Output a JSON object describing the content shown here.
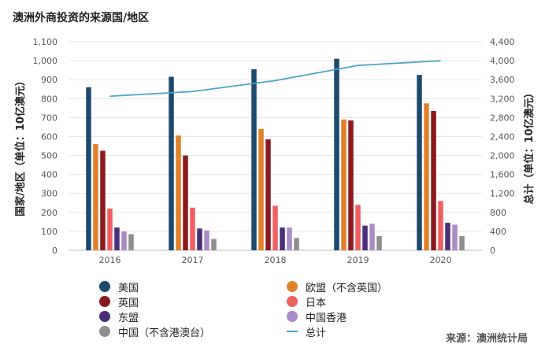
{
  "chart_data": {
    "type": "bar",
    "title": "澳洲外商投资的来源国/地区",
    "categories": [
      "2016",
      "2017",
      "2018",
      "2019",
      "2020"
    ],
    "ylabel": "国家/地区（单位：10亿澳元）",
    "y2label": "总计（单位：10亿澳元）",
    "ylim": [
      0,
      1100
    ],
    "y2lim": [
      0,
      4400
    ],
    "yticks": [
      "0",
      "100",
      "200",
      "300",
      "400",
      "500",
      "600",
      "700",
      "800",
      "900",
      "1,000",
      "1,100"
    ],
    "y2ticks": [
      "0",
      "400",
      "800",
      "1,200",
      "1,600",
      "2,000",
      "2,400",
      "2,800",
      "3,200",
      "3,600",
      "4,000",
      "4,400"
    ],
    "grid": true,
    "legend_placement": "bottom",
    "series": [
      {
        "name": "美国",
        "color": "#1a4a6e",
        "values": [
          860,
          915,
          955,
          1010,
          925
        ]
      },
      {
        "name": "欧盟（不含英国）",
        "color": "#e0822c",
        "values": [
          560,
          605,
          640,
          690,
          775
        ]
      },
      {
        "name": "英国",
        "color": "#8b1a1f",
        "values": [
          525,
          500,
          585,
          685,
          735
        ]
      },
      {
        "name": "日本",
        "color": "#f06060",
        "values": [
          220,
          225,
          235,
          240,
          260
        ]
      },
      {
        "name": "东盟",
        "color": "#4a2e7a",
        "values": [
          120,
          115,
          120,
          130,
          145
        ]
      },
      {
        "name": "中国香港",
        "color": "#a88cc4",
        "values": [
          100,
          105,
          120,
          140,
          135
        ]
      },
      {
        "name": "中国（不含港澳台）",
        "color": "#8e8e8e",
        "values": [
          85,
          60,
          65,
          75,
          75
        ]
      }
    ],
    "line": {
      "name": "总计",
      "color": "#4aa3c8",
      "values": [
        3250,
        3350,
        3580,
        3900,
        4000
      ]
    },
    "source": "来源：澳洲统计局"
  },
  "legend": [
    {
      "label": "美国",
      "color": "#1a4a6e"
    },
    {
      "label": "欧盟（不含英国）",
      "color": "#e0822c"
    },
    {
      "label": "英国",
      "color": "#8b1a1f"
    },
    {
      "label": "日本",
      "color": "#f06060"
    },
    {
      "label": "东盟",
      "color": "#4a2e7a"
    },
    {
      "label": "中国香港",
      "color": "#a88cc4"
    },
    {
      "label": "中国（不含港澳台）",
      "color": "#8e8e8e"
    },
    {
      "label": "总计",
      "color": "#4aa3c8"
    }
  ]
}
